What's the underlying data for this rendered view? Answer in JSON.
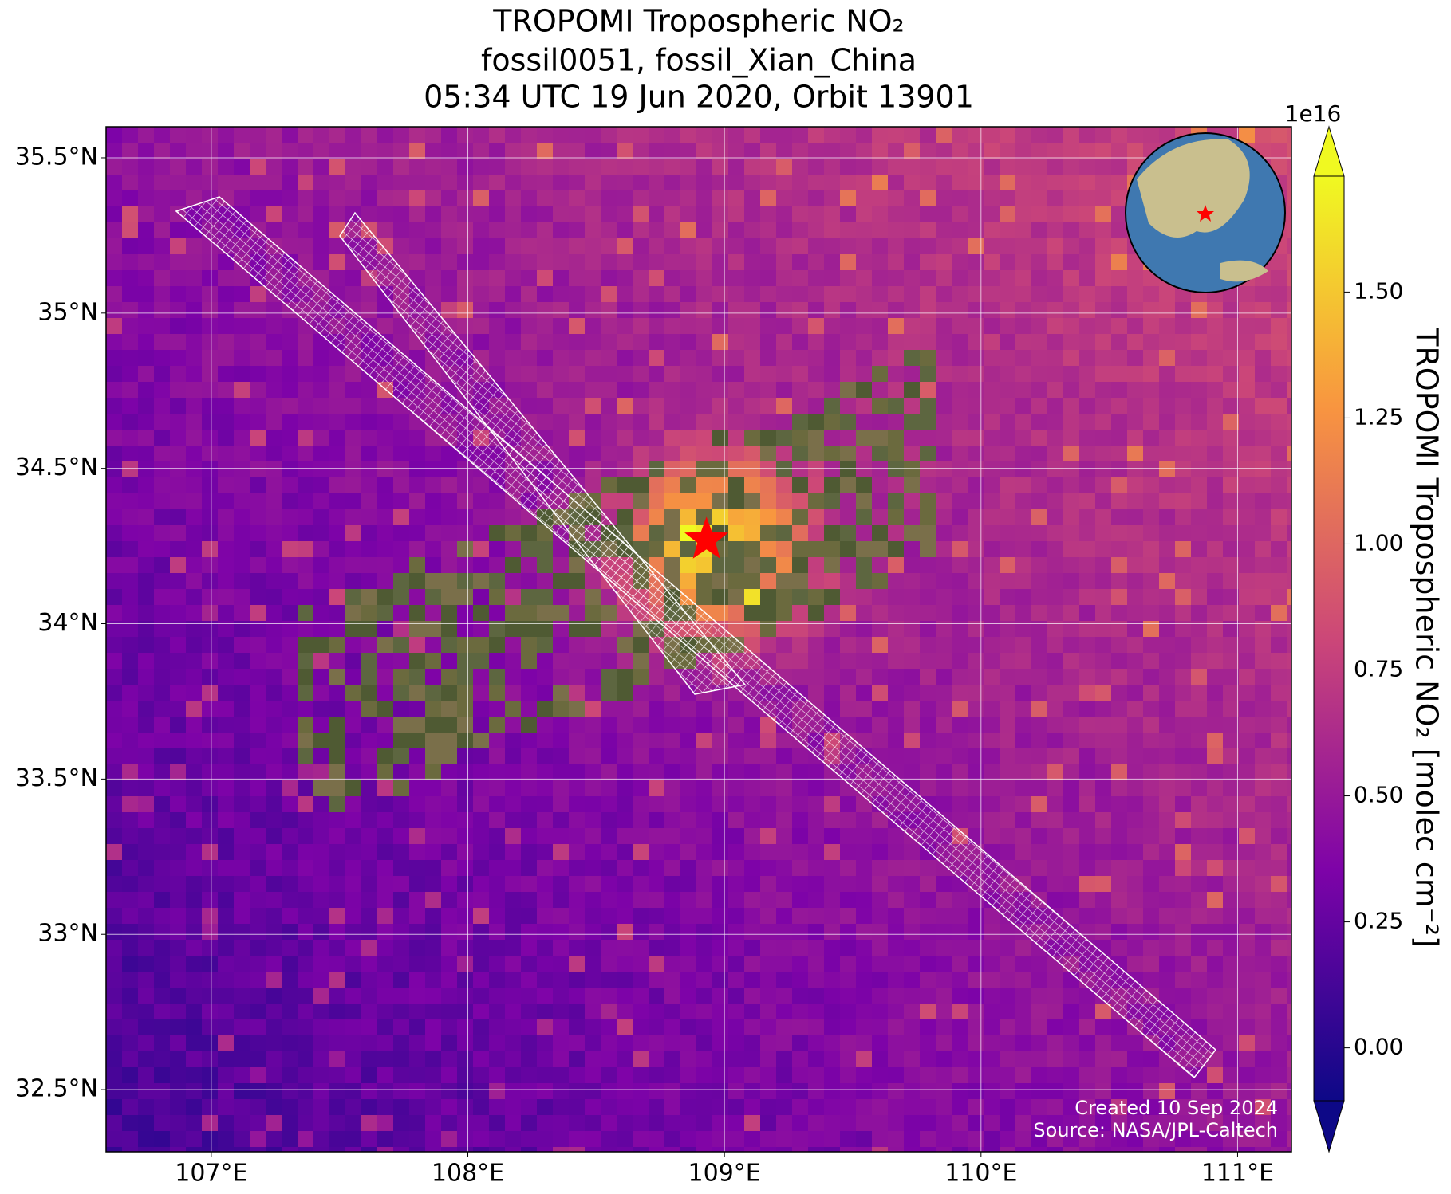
{
  "chart_data": {
    "type": "map",
    "title": [
      "TROPOMI Tropospheric NO₂",
      "fossil0051, fossil_Xian_China",
      "05:34 UTC 19 Jun 2020, Orbit 13901"
    ],
    "xlim": [
      106.59,
      111.21
    ],
    "ylim": [
      32.3,
      35.6
    ],
    "xticks": [
      {
        "value": 107,
        "label": "107°E"
      },
      {
        "value": 108,
        "label": "108°E"
      },
      {
        "value": 109,
        "label": "109°E"
      },
      {
        "value": 110,
        "label": "110°E"
      },
      {
        "value": 111,
        "label": "111°E"
      }
    ],
    "yticks": [
      {
        "value": 32.5,
        "label": "32.5°N"
      },
      {
        "value": 33,
        "label": "33°N"
      },
      {
        "value": 33.5,
        "label": "33.5°N"
      },
      {
        "value": 34,
        "label": "34°N"
      },
      {
        "value": 34.5,
        "label": "34.5°N"
      },
      {
        "value": 35,
        "label": "35°N"
      },
      {
        "value": 35.5,
        "label": "35.5°N"
      }
    ],
    "grid": true,
    "site": {
      "lon": 108.93,
      "lat": 34.27,
      "color": "#ff0000"
    },
    "colorbar": {
      "label": "TROPOMI Tropospheric NO₂ [molec cm⁻²]",
      "exponent": "1e16",
      "colormap": "plasma",
      "clim": [
        -0.105,
        1.73
      ],
      "ticks": [
        {
          "value": 0,
          "label": "0.00"
        },
        {
          "value": 0.25,
          "label": "0.25"
        },
        {
          "value": 0.5,
          "label": "0.50"
        },
        {
          "value": 0.75,
          "label": "0.75"
        },
        {
          "value": 1,
          "label": "1.00"
        },
        {
          "value": 1.25,
          "label": "1.25"
        },
        {
          "value": 1.5,
          "label": "1.50"
        }
      ]
    },
    "footer": [
      "Created 10 Sep 2024",
      "Source: NASA/JPL-Caltech"
    ]
  }
}
